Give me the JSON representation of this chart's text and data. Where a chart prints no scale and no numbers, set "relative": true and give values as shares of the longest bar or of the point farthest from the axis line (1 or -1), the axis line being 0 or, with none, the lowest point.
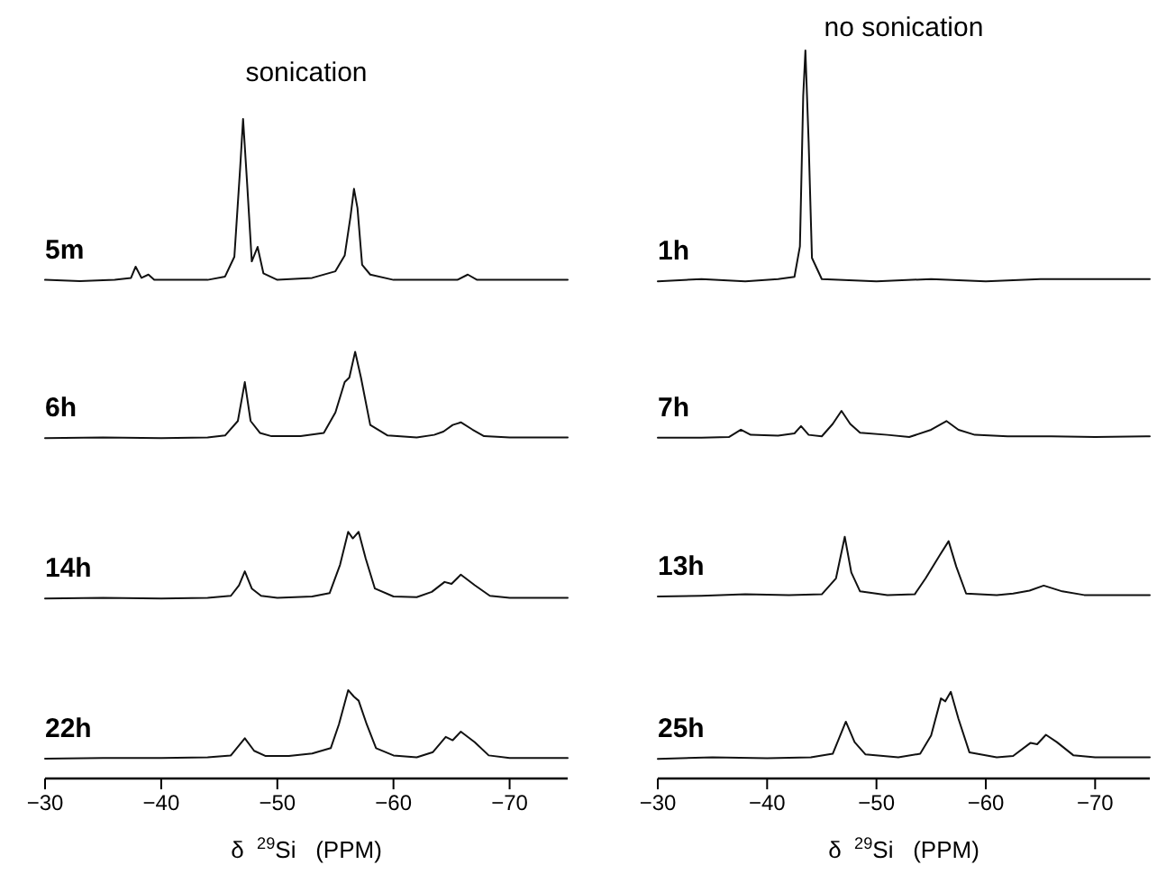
{
  "chart_data": [
    {
      "type": "line",
      "title": "sonication",
      "xlabel": "δ  $^{29}$Si   (PPM)",
      "relative": true,
      "xlim": [
        -30,
        -75
      ],
      "xticks": [
        {
          "value": -30,
          "label": "−30"
        },
        {
          "value": -40,
          "label": "−40"
        },
        {
          "value": -50,
          "label": "−50"
        },
        {
          "value": -60,
          "label": "−60"
        },
        {
          "value": -70,
          "label": "−70"
        }
      ],
      "series": [
        {
          "name": "5m",
          "color": "#111111",
          "x": [
            -30,
            -33,
            -36,
            -37.4,
            -37.8,
            -38.3,
            -38.9,
            -39.4,
            -42,
            -44,
            -45.5,
            -46.3,
            -46.8,
            -47.05,
            -47.4,
            -47.8,
            -48.3,
            -48.8,
            -50,
            -53,
            -55,
            -55.8,
            -56.3,
            -56.6,
            -56.9,
            -57.3,
            -58,
            -60,
            -63,
            -65.5,
            -66.4,
            -67.2,
            -70,
            -75
          ],
          "values": [
            0.756,
            0.754,
            0.756,
            0.759,
            0.776,
            0.759,
            0.764,
            0.756,
            0.756,
            0.756,
            0.761,
            0.791,
            0.926,
            1,
            0.902,
            0.784,
            0.806,
            0.766,
            0.756,
            0.759,
            0.769,
            0.793,
            0.852,
            0.894,
            0.865,
            0.779,
            0.764,
            0.756,
            0.756,
            0.756,
            0.764,
            0.756,
            0.756,
            0.756
          ]
        },
        {
          "name": "6h",
          "color": "#111111",
          "x": [
            -30,
            -35,
            -40,
            -44,
            -45.5,
            -46.6,
            -47.2,
            -47.7,
            -48.5,
            -49.5,
            -52,
            -54,
            -55,
            -55.8,
            -56.2,
            -56.7,
            -57.2,
            -58,
            -59.5,
            -62,
            -63.5,
            -64.3,
            -65.1,
            -65.8,
            -66.8,
            -67.8,
            -70,
            -75
          ],
          "values": [
            0.516,
            0.517,
            0.516,
            0.517,
            0.52,
            0.542,
            0.601,
            0.542,
            0.524,
            0.519,
            0.519,
            0.524,
            0.555,
            0.601,
            0.608,
            0.647,
            0.608,
            0.536,
            0.52,
            0.517,
            0.521,
            0.526,
            0.536,
            0.54,
            0.529,
            0.519,
            0.517,
            0.517
          ]
        },
        {
          "name": "14h",
          "color": "#111111",
          "x": [
            -30,
            -35,
            -40,
            -44,
            -46,
            -46.7,
            -47.2,
            -47.8,
            -48.6,
            -50,
            -53,
            -54.5,
            -55.4,
            -56.1,
            -56.5,
            -57,
            -57.6,
            -58.4,
            -60,
            -62,
            -63.3,
            -64.4,
            -65,
            -65.8,
            -67,
            -68.3,
            -70,
            -75
          ],
          "values": [
            0.273,
            0.274,
            0.273,
            0.274,
            0.277,
            0.293,
            0.314,
            0.288,
            0.277,
            0.274,
            0.276,
            0.281,
            0.324,
            0.374,
            0.364,
            0.374,
            0.334,
            0.288,
            0.276,
            0.275,
            0.283,
            0.298,
            0.295,
            0.309,
            0.293,
            0.277,
            0.274,
            0.274
          ]
        },
        {
          "name": "22h",
          "color": "#111111",
          "x": [
            -30,
            -35,
            -40,
            -44,
            -46,
            -47.2,
            -48,
            -49,
            -51,
            -53,
            -54.6,
            -55.3,
            -56.1,
            -56.6,
            -57,
            -57.7,
            -58.5,
            -60,
            -62,
            -63.4,
            -64.5,
            -65.1,
            -65.8,
            -67,
            -68.2,
            -70,
            -75
          ],
          "values": [
            0.03,
            0.031,
            0.031,
            0.032,
            0.035,
            0.061,
            0.042,
            0.034,
            0.034,
            0.038,
            0.046,
            0.082,
            0.134,
            0.124,
            0.118,
            0.082,
            0.046,
            0.035,
            0.032,
            0.04,
            0.063,
            0.058,
            0.071,
            0.055,
            0.035,
            0.031,
            0.031
          ]
        }
      ]
    },
    {
      "type": "line",
      "title": "no sonication",
      "xlabel": "δ  $^{29}$Si   (PPM)",
      "relative": true,
      "xlim": [
        -30,
        -75
      ],
      "xticks": [
        {
          "value": -30,
          "label": "−30"
        },
        {
          "value": -40,
          "label": "−40"
        },
        {
          "value": -50,
          "label": "−50"
        },
        {
          "value": -60,
          "label": "−60"
        },
        {
          "value": -70,
          "label": "−70"
        }
      ],
      "series": [
        {
          "name": "1h",
          "color": "#111111",
          "x": [
            -30,
            -34,
            -38,
            -41,
            -42.5,
            -43,
            -43.3,
            -43.5,
            -43.8,
            -44.1,
            -45,
            -50,
            -55,
            -60,
            -65,
            -70,
            -75
          ],
          "values": [
            0.683,
            0.686,
            0.683,
            0.686,
            0.689,
            0.731,
            0.937,
            1,
            0.873,
            0.715,
            0.686,
            0.683,
            0.686,
            0.683,
            0.686,
            0.686,
            0.686
          ]
        },
        {
          "name": "7h",
          "color": "#111111",
          "x": [
            -30,
            -34,
            -36.5,
            -37.6,
            -38.5,
            -41,
            -42.5,
            -43.1,
            -43.8,
            -45,
            -46,
            -46.8,
            -47.6,
            -48.5,
            -51,
            -53,
            -55,
            -56.4,
            -57.5,
            -59,
            -62,
            -66,
            -70,
            -75
          ],
          "values": [
            0.468,
            0.468,
            0.469,
            0.479,
            0.472,
            0.471,
            0.474,
            0.484,
            0.472,
            0.47,
            0.487,
            0.505,
            0.487,
            0.475,
            0.472,
            0.469,
            0.479,
            0.491,
            0.479,
            0.472,
            0.47,
            0.47,
            0.469,
            0.47
          ]
        },
        {
          "name": "13h",
          "color": "#111111",
          "x": [
            -30,
            -34,
            -38,
            -42,
            -45,
            -46.3,
            -47.1,
            -47.7,
            -48.5,
            -51,
            -53.5,
            -54.5,
            -55.8,
            -56.6,
            -57.3,
            -58.2,
            -61,
            -62.5,
            -64,
            -65.3,
            -67,
            -69,
            -75
          ],
          "values": [
            0.25,
            0.251,
            0.253,
            0.252,
            0.253,
            0.275,
            0.332,
            0.283,
            0.257,
            0.252,
            0.253,
            0.275,
            0.307,
            0.326,
            0.291,
            0.254,
            0.252,
            0.254,
            0.258,
            0.265,
            0.257,
            0.252,
            0.252
          ]
        },
        {
          "name": "25h",
          "color": "#111111",
          "x": [
            -30,
            -35,
            -40,
            -44,
            -46,
            -47.2,
            -48,
            -49,
            -52,
            -54,
            -55,
            -55.9,
            -56.3,
            -56.8,
            -57.5,
            -58.5,
            -61,
            -62.5,
            -64.1,
            -64.7,
            -65.5,
            -66.5,
            -68,
            -70,
            -75
          ],
          "values": [
            0.027,
            0.029,
            0.028,
            0.029,
            0.034,
            0.078,
            0.05,
            0.033,
            0.029,
            0.034,
            0.059,
            0.11,
            0.106,
            0.119,
            0.082,
            0.036,
            0.029,
            0.031,
            0.049,
            0.047,
            0.06,
            0.05,
            0.032,
            0.029,
            0.029
          ]
        }
      ]
    }
  ]
}
